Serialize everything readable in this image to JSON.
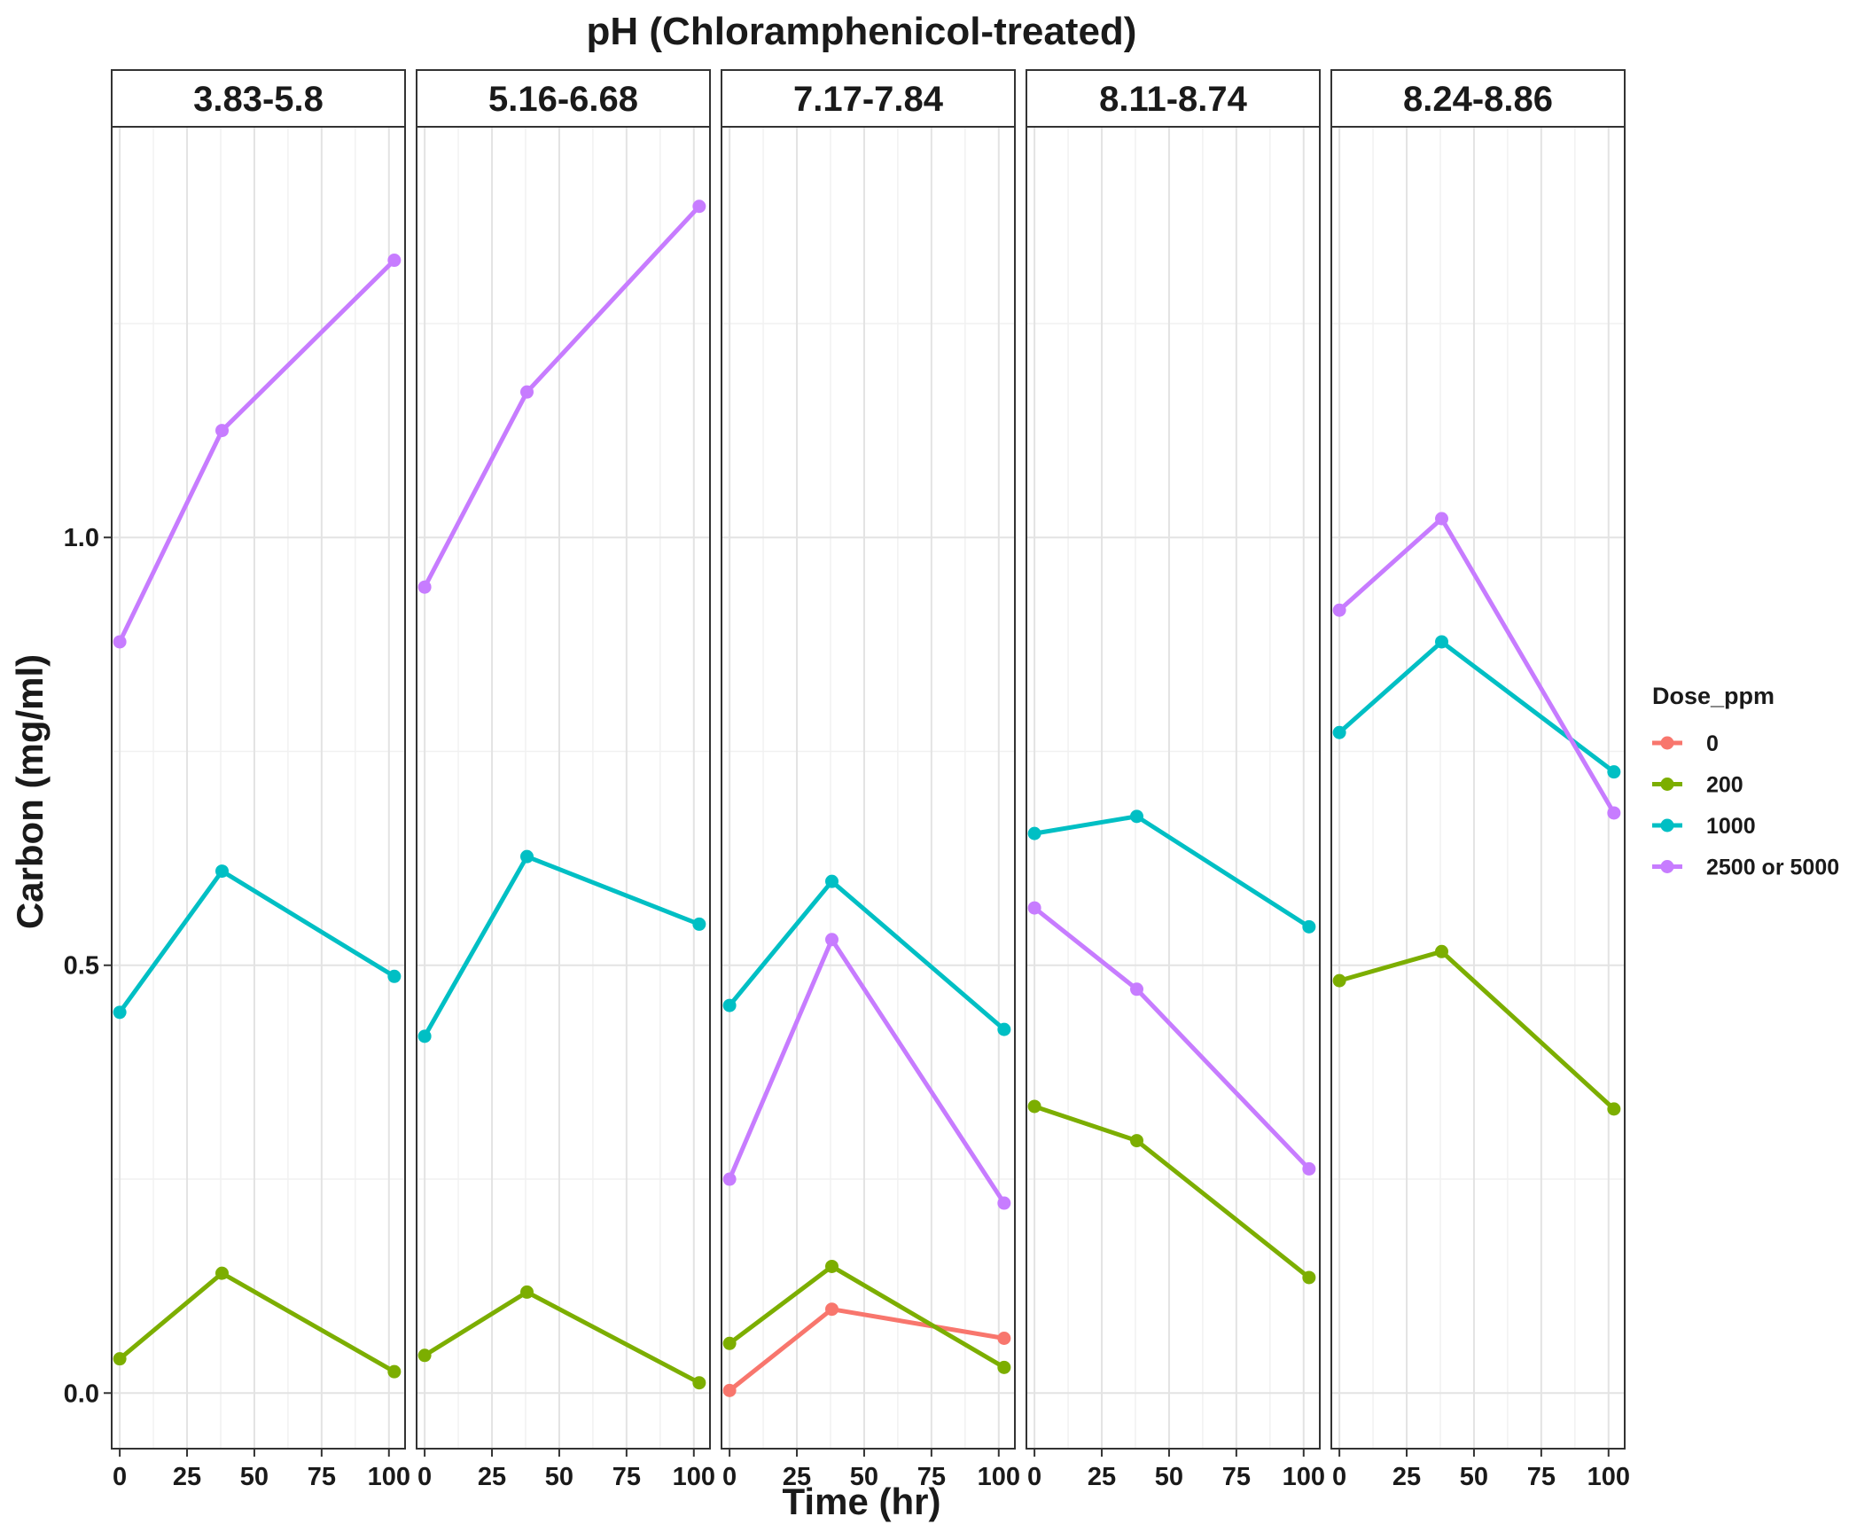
{
  "chart_data": {
    "type": "line",
    "title": "pH (Chloramphenicol-treated)",
    "xlabel": "Time (hr)",
    "ylabel": "Carbon (mg/ml)",
    "xlim": [
      -3,
      106
    ],
    "ylim": [
      -0.065,
      1.48
    ],
    "x_ticks": [
      0,
      25,
      50,
      75,
      100
    ],
    "y_ticks": [
      0.0,
      0.5,
      1.0
    ],
    "y_tick_labels": [
      "0.0",
      "0.5",
      "1.0"
    ],
    "x": [
      0,
      38,
      102
    ],
    "grid": true,
    "legend": {
      "title": "Dose_ppm",
      "position": "right",
      "entries": [
        {
          "label": "0",
          "color": "#F8766D"
        },
        {
          "label": "200",
          "color": "#7CAE00"
        },
        {
          "label": "1000",
          "color": "#00BFC4"
        },
        {
          "label": "2500 or 5000",
          "color": "#C77CFF"
        }
      ]
    },
    "panels": [
      {
        "label": "3.83-5.8",
        "series": [
          {
            "dose": "200",
            "values": [
              0.04,
              0.14,
              0.025
            ]
          },
          {
            "dose": "1000",
            "values": [
              0.445,
              0.61,
              0.487
            ]
          },
          {
            "dose": "2500 or 5000",
            "values": [
              0.878,
              1.125,
              1.324
            ]
          }
        ]
      },
      {
        "label": "5.16-6.68",
        "series": [
          {
            "dose": "200",
            "values": [
              0.044,
              0.118,
              0.012
            ]
          },
          {
            "dose": "1000",
            "values": [
              0.417,
              0.627,
              0.548
            ]
          },
          {
            "dose": "2500 or 5000",
            "values": [
              0.942,
              1.17,
              1.387
            ]
          }
        ]
      },
      {
        "label": "7.17-7.84",
        "series": [
          {
            "dose": "0",
            "values": [
              0.003,
              0.098,
              0.064
            ]
          },
          {
            "dose": "200",
            "values": [
              0.058,
              0.148,
              0.03
            ]
          },
          {
            "dose": "1000",
            "values": [
              0.453,
              0.598,
              0.425
            ]
          },
          {
            "dose": "2500 or 5000",
            "values": [
              0.25,
              0.53,
              0.222
            ]
          }
        ]
      },
      {
        "label": "8.11-8.74",
        "series": [
          {
            "dose": "200",
            "values": [
              0.335,
              0.295,
              0.135
            ]
          },
          {
            "dose": "1000",
            "values": [
              0.654,
              0.674,
              0.545
            ]
          },
          {
            "dose": "2500 or 5000",
            "values": [
              0.567,
              0.472,
              0.262
            ]
          }
        ]
      },
      {
        "label": "8.24-8.86",
        "series": [
          {
            "dose": "200",
            "values": [
              0.482,
              0.516,
              0.332
            ]
          },
          {
            "dose": "1000",
            "values": [
              0.772,
              0.878,
              0.726
            ]
          },
          {
            "dose": "2500 or 5000",
            "values": [
              0.915,
              1.022,
              0.678
            ]
          }
        ]
      }
    ]
  }
}
